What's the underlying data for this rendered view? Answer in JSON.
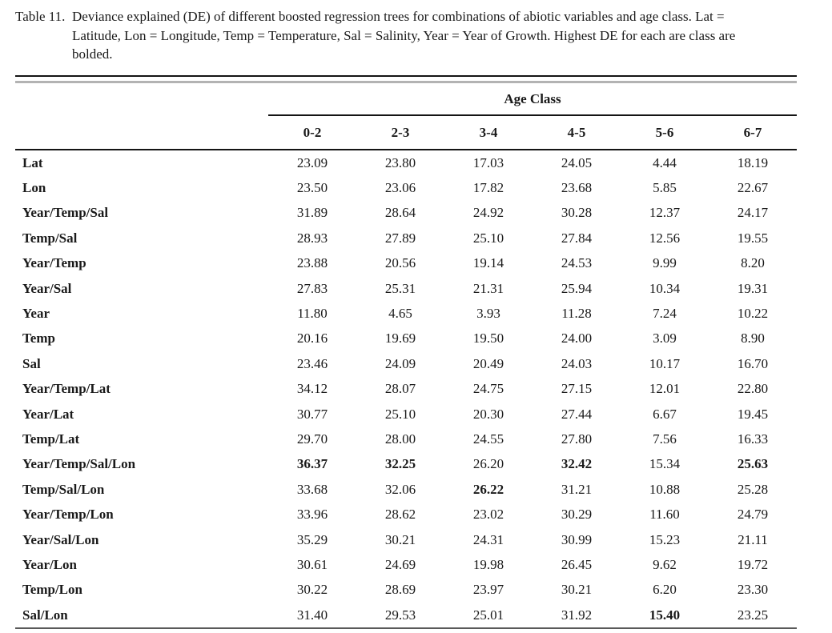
{
  "caption": {
    "label": "Table 11.",
    "lines": [
      "Deviance explained (DE) of different boosted regression trees for combinations of abiotic variables and age class. Lat =",
      "Latitude, Lon = Longitude, Temp = Temperature, Sal = Salinity, Year = Year of Growth. Highest DE for each are class are",
      "bolded."
    ]
  },
  "table": {
    "group_header": "Age Class",
    "columns": [
      "0-2",
      "2-3",
      "3-4",
      "4-5",
      "5-6",
      "6-7"
    ],
    "rows": [
      {
        "label": "Lat",
        "values": [
          "23.09",
          "23.80",
          "17.03",
          "24.05",
          "4.44",
          "18.19"
        ],
        "bold": [
          false,
          false,
          false,
          false,
          false,
          false
        ]
      },
      {
        "label": "Lon",
        "values": [
          "23.50",
          "23.06",
          "17.82",
          "23.68",
          "5.85",
          "22.67"
        ],
        "bold": [
          false,
          false,
          false,
          false,
          false,
          false
        ]
      },
      {
        "label": "Year/Temp/Sal",
        "values": [
          "31.89",
          "28.64",
          "24.92",
          "30.28",
          "12.37",
          "24.17"
        ],
        "bold": [
          false,
          false,
          false,
          false,
          false,
          false
        ]
      },
      {
        "label": "Temp/Sal",
        "values": [
          "28.93",
          "27.89",
          "25.10",
          "27.84",
          "12.56",
          "19.55"
        ],
        "bold": [
          false,
          false,
          false,
          false,
          false,
          false
        ]
      },
      {
        "label": "Year/Temp",
        "values": [
          "23.88",
          "20.56",
          "19.14",
          "24.53",
          "9.99",
          "8.20"
        ],
        "bold": [
          false,
          false,
          false,
          false,
          false,
          false
        ]
      },
      {
        "label": "Year/Sal",
        "values": [
          "27.83",
          "25.31",
          "21.31",
          "25.94",
          "10.34",
          "19.31"
        ],
        "bold": [
          false,
          false,
          false,
          false,
          false,
          false
        ]
      },
      {
        "label": "Year",
        "values": [
          "11.80",
          "4.65",
          "3.93",
          "11.28",
          "7.24",
          "10.22"
        ],
        "bold": [
          false,
          false,
          false,
          false,
          false,
          false
        ]
      },
      {
        "label": "Temp",
        "values": [
          "20.16",
          "19.69",
          "19.50",
          "24.00",
          "3.09",
          "8.90"
        ],
        "bold": [
          false,
          false,
          false,
          false,
          false,
          false
        ]
      },
      {
        "label": "Sal",
        "values": [
          "23.46",
          "24.09",
          "20.49",
          "24.03",
          "10.17",
          "16.70"
        ],
        "bold": [
          false,
          false,
          false,
          false,
          false,
          false
        ]
      },
      {
        "label": "Year/Temp/Lat",
        "values": [
          "34.12",
          "28.07",
          "24.75",
          "27.15",
          "12.01",
          "22.80"
        ],
        "bold": [
          false,
          false,
          false,
          false,
          false,
          false
        ]
      },
      {
        "label": "Year/Lat",
        "values": [
          "30.77",
          "25.10",
          "20.30",
          "27.44",
          "6.67",
          "19.45"
        ],
        "bold": [
          false,
          false,
          false,
          false,
          false,
          false
        ]
      },
      {
        "label": "Temp/Lat",
        "values": [
          "29.70",
          "28.00",
          "24.55",
          "27.80",
          "7.56",
          "16.33"
        ],
        "bold": [
          false,
          false,
          false,
          false,
          false,
          false
        ]
      },
      {
        "label": "Year/Temp/Sal/Lon",
        "values": [
          "36.37",
          "32.25",
          "26.20",
          "32.42",
          "15.34",
          "25.63"
        ],
        "bold": [
          true,
          true,
          false,
          true,
          false,
          true
        ]
      },
      {
        "label": "Temp/Sal/Lon",
        "values": [
          "33.68",
          "32.06",
          "26.22",
          "31.21",
          "10.88",
          "25.28"
        ],
        "bold": [
          false,
          false,
          true,
          false,
          false,
          false
        ]
      },
      {
        "label": "Year/Temp/Lon",
        "values": [
          "33.96",
          "28.62",
          "23.02",
          "30.29",
          "11.60",
          "24.79"
        ],
        "bold": [
          false,
          false,
          false,
          false,
          false,
          false
        ]
      },
      {
        "label": "Year/Sal/Lon",
        "values": [
          "35.29",
          "30.21",
          "24.31",
          "30.99",
          "15.23",
          "21.11"
        ],
        "bold": [
          false,
          false,
          false,
          false,
          false,
          false
        ]
      },
      {
        "label": "Year/Lon",
        "values": [
          "30.61",
          "24.69",
          "19.98",
          "26.45",
          "9.62",
          "19.72"
        ],
        "bold": [
          false,
          false,
          false,
          false,
          false,
          false
        ]
      },
      {
        "label": "Temp/Lon",
        "values": [
          "30.22",
          "28.69",
          "23.97",
          "30.21",
          "6.20",
          "23.30"
        ],
        "bold": [
          false,
          false,
          false,
          false,
          false,
          false
        ]
      },
      {
        "label": "Sal/Lon",
        "values": [
          "31.40",
          "29.53",
          "25.01",
          "31.92",
          "15.40",
          "23.25"
        ],
        "bold": [
          false,
          false,
          false,
          false,
          true,
          false
        ]
      }
    ]
  }
}
